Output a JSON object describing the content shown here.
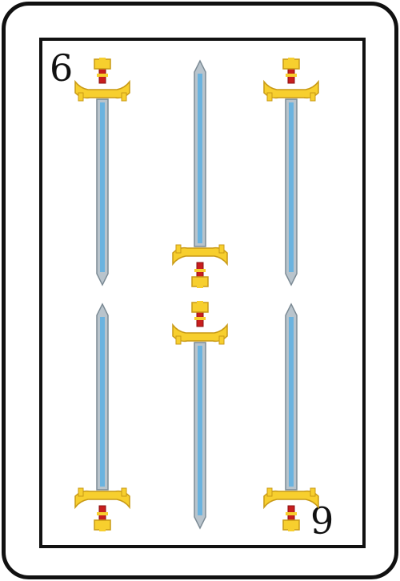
{
  "card": {
    "suit": "espadas",
    "rank_index": "6",
    "rank_index_inverted": "6"
  },
  "sword_icon": "sword-icon",
  "colors": {
    "blade": "#6bb3df",
    "blade_edge": "#b9c4cc",
    "hilt": "#f7cf2e",
    "hilt_shadow": "#c99a16",
    "grip": "#c81e1e",
    "outline": "#111111"
  }
}
